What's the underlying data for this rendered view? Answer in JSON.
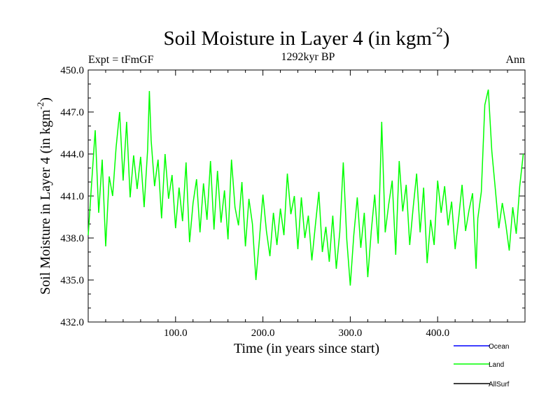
{
  "chart_data": {
    "type": "line",
    "title": "Soil Moisture in Layer 4 (in kgm",
    "title_sup": "-2",
    "title_close": ")",
    "subtitle": "1292kyr BP",
    "left_label": "Expt = tFmGF",
    "right_label": "Ann",
    "xlabel": "Time (in years since start)",
    "ylabel": "Soil Moisture in Layer 4 (in kgm",
    "ylabel_sup": "-2",
    "ylabel_close": ")",
    "xlim": [
      0,
      500
    ],
    "ylim": [
      432.0,
      450.0
    ],
    "xticks": [
      {
        "value": 100,
        "label": "100.0"
      },
      {
        "value": 200,
        "label": "200.0"
      },
      {
        "value": 300,
        "label": "300.0"
      },
      {
        "value": 400,
        "label": "400.0"
      }
    ],
    "yticks": [
      {
        "value": 432.0,
        "label": "432.0"
      },
      {
        "value": 435.0,
        "label": "435.0"
      },
      {
        "value": 438.0,
        "label": "438.0"
      },
      {
        "value": 441.0,
        "label": "441.0"
      },
      {
        "value": 444.0,
        "label": "444.0"
      },
      {
        "value": 447.0,
        "label": "447.0"
      },
      {
        "value": 450.0,
        "label": "450.0"
      }
    ],
    "legend": [
      {
        "name": "Ocean",
        "color": "#0000ff"
      },
      {
        "name": "Land",
        "color": "#00ff00"
      },
      {
        "name": "AllSurf",
        "color": "#000000"
      }
    ],
    "legend_position": "bottom-right",
    "series": [
      {
        "name": "Land",
        "color": "#00ff00",
        "x": [
          0,
          4,
          8,
          12,
          16,
          20,
          24,
          28,
          32,
          36,
          40,
          44,
          48,
          52,
          56,
          60,
          64,
          68,
          70,
          72,
          76,
          80,
          84,
          88,
          92,
          96,
          100,
          104,
          108,
          112,
          116,
          120,
          124,
          128,
          132,
          136,
          140,
          144,
          148,
          152,
          156,
          160,
          164,
          168,
          172,
          176,
          180,
          184,
          188,
          192,
          196,
          200,
          204,
          208,
          212,
          216,
          220,
          224,
          228,
          232,
          236,
          240,
          244,
          248,
          252,
          256,
          260,
          264,
          268,
          272,
          276,
          280,
          284,
          288,
          292,
          296,
          300,
          304,
          308,
          312,
          316,
          320,
          324,
          328,
          332,
          336,
          340,
          344,
          348,
          352,
          356,
          360,
          364,
          368,
          372,
          376,
          380,
          384,
          388,
          392,
          396,
          400,
          404,
          408,
          412,
          416,
          420,
          424,
          428,
          432,
          436,
          440,
          444,
          446,
          450,
          454,
          458,
          462,
          466,
          470,
          474,
          478,
          482,
          486,
          490,
          494,
          498
        ],
        "values": [
          438.2,
          442.0,
          445.7,
          439.8,
          443.6,
          437.4,
          442.4,
          441.0,
          444.5,
          447.0,
          442.1,
          446.3,
          440.9,
          443.9,
          441.5,
          443.8,
          440.2,
          444.3,
          448.5,
          445.0,
          441.7,
          443.6,
          439.4,
          444.0,
          440.8,
          442.5,
          438.7,
          441.6,
          439.2,
          443.4,
          437.7,
          440.5,
          442.2,
          438.4,
          441.9,
          439.3,
          443.5,
          438.6,
          442.8,
          439.1,
          441.4,
          437.9,
          443.6,
          440.2,
          438.9,
          442.0,
          437.4,
          440.8,
          439.0,
          435.0,
          437.9,
          441.1,
          438.5,
          436.7,
          439.8,
          437.5,
          440.1,
          438.2,
          442.6,
          439.7,
          441.0,
          437.2,
          440.9,
          438.0,
          439.6,
          436.4,
          438.9,
          441.3,
          437.0,
          438.8,
          436.3,
          439.6,
          435.8,
          438.4,
          443.4,
          437.9,
          434.6,
          438.2,
          440.9,
          437.3,
          439.8,
          435.2,
          438.5,
          441.1,
          437.6,
          446.3,
          438.4,
          440.4,
          442.1,
          436.8,
          443.5,
          439.9,
          441.8,
          437.5,
          440.2,
          442.6,
          438.4,
          441.6,
          436.2,
          439.3,
          437.5,
          442.1,
          439.8,
          441.7,
          438.9,
          440.6,
          437.2,
          439.4,
          441.8,
          438.5,
          440.0,
          441.2,
          435.8,
          439.4,
          441.3,
          447.5,
          448.6,
          444.2,
          441.5,
          438.7,
          440.5,
          439.0,
          437.1,
          440.2,
          438.3,
          441.7,
          444.0
        ]
      }
    ]
  }
}
